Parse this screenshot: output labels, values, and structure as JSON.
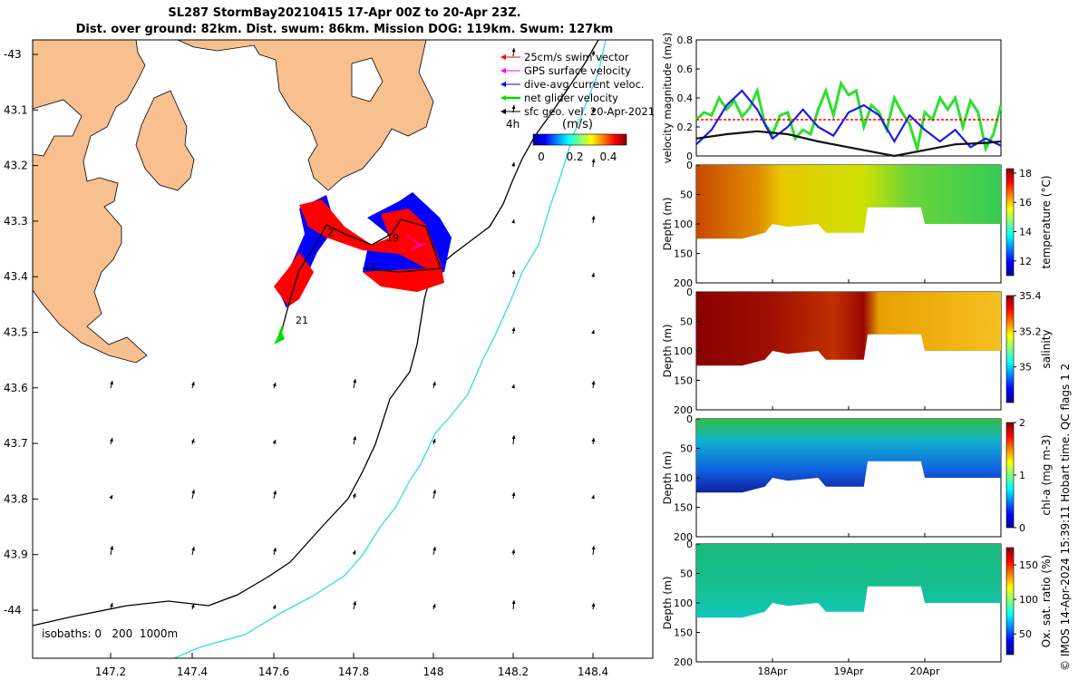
{
  "title_line1": "SL287 StormBay20210415 17-Apr 00Z to 20-Apr 23Z.",
  "title_line2": "Dist. over ground: 82km. Dist. swum: 86km. Mission DOG: 119km. Swum: 127km",
  "watermark": "© IMOS 14-Apr-2024 15:39:11 Hobart time. QC flags 1  2",
  "colors": {
    "land": "#f7c08e",
    "swim": "#ff0000",
    "gps": "#ff00ff",
    "dive": "#0000ff",
    "net": "#00dd00",
    "sfc": "#000000",
    "iso200": "#000000",
    "iso1000": "#33dddd",
    "speed_line": "#2de02d",
    "current_line": "#1a1aee",
    "geo_line": "#111111",
    "swim_ref_line": "#ff0000"
  },
  "map": {
    "legend": [
      {
        "label": "25cm/s swim vector",
        "color": "#ff0000",
        "icon": "arrow-left-icon"
      },
      {
        "label": "GPS surface velocity",
        "color": "#ff00ff",
        "icon": "arrow-left-icon"
      },
      {
        "label": "dive-avg current veloc.",
        "color": "#0000ff",
        "icon": "arrow-left-icon"
      },
      {
        "label": "net glider velocity",
        "color": "#00dd00",
        "icon": "arrow-left-icon"
      },
      {
        "label": "sfc geo. vel. 20-Apr-2021",
        "color": "#000000",
        "icon": "arrow-left-icon"
      }
    ],
    "time_step_label": "4h",
    "colorbar_unit": "(m/s)",
    "colorbar_ticks": [
      "0",
      "0.2",
      "0.4"
    ],
    "day_labels": [
      "2",
      "19",
      "1",
      "21"
    ],
    "isobaths_label": "isobaths: 0   200  1000m",
    "xticks": [
      "147.2",
      "147.4",
      "147.6",
      "147.8",
      "148",
      "148.2",
      "148.4"
    ],
    "yticks": [
      "-43",
      "43.1",
      "43.2",
      "43.3",
      "43.4",
      "43.5",
      "43.6",
      "43.7",
      "43.8",
      "43.9",
      "-44"
    ]
  },
  "chart_data": [
    {
      "type": "line",
      "title": "",
      "ylabel": "velocity magnitude (m/s)",
      "ylim": [
        0,
        0.8
      ],
      "yticks": [
        "0",
        "0.2",
        "0.4",
        "0.6",
        "0.8"
      ],
      "xlim": [
        17.0,
        21.0
      ],
      "series": [
        {
          "name": "net glider velocity",
          "x": [
            17.0,
            17.1,
            17.2,
            17.3,
            17.4,
            17.5,
            17.6,
            17.7,
            17.8,
            17.9,
            18.0,
            18.1,
            18.2,
            18.3,
            18.4,
            18.5,
            18.6,
            18.7,
            18.8,
            18.9,
            19.0,
            19.1,
            19.2,
            19.3,
            19.4,
            19.5,
            19.6,
            19.7,
            19.8,
            19.9,
            20.0,
            20.1,
            20.2,
            20.3,
            20.4,
            20.5,
            20.6,
            20.7,
            20.8,
            20.9,
            21.0
          ],
          "values": [
            0.25,
            0.3,
            0.28,
            0.4,
            0.32,
            0.38,
            0.27,
            0.33,
            0.45,
            0.22,
            0.15,
            0.28,
            0.3,
            0.12,
            0.18,
            0.15,
            0.32,
            0.45,
            0.28,
            0.5,
            0.42,
            0.45,
            0.2,
            0.35,
            0.3,
            0.18,
            0.4,
            0.3,
            0.22,
            0.05,
            0.3,
            0.25,
            0.4,
            0.32,
            0.4,
            0.2,
            0.38,
            0.3,
            0.05,
            0.15,
            0.35
          ]
        },
        {
          "name": "dive-avg current veloc.",
          "x": [
            17.0,
            17.2,
            17.4,
            17.6,
            17.8,
            18.0,
            18.2,
            18.4,
            18.6,
            18.8,
            19.0,
            19.2,
            19.4,
            19.6,
            19.8,
            20.0,
            20.2,
            20.4,
            20.6,
            20.8,
            21.0
          ],
          "values": [
            0.08,
            0.18,
            0.35,
            0.45,
            0.32,
            0.12,
            0.2,
            0.32,
            0.2,
            0.14,
            0.3,
            0.35,
            0.28,
            0.1,
            0.28,
            0.18,
            0.1,
            0.18,
            0.06,
            0.12,
            0.07
          ]
        },
        {
          "name": "sfc geo. vel.",
          "x": [
            17.0,
            17.4,
            17.8,
            18.2,
            18.6,
            19.0,
            19.4,
            19.6,
            20.0,
            20.4,
            20.8,
            21.0
          ],
          "values": [
            0.12,
            0.15,
            0.17,
            0.15,
            0.1,
            0.06,
            0.02,
            0.0,
            0.04,
            0.08,
            0.09,
            0.1
          ]
        },
        {
          "name": "25cm/s swim",
          "x": [
            17.0,
            21.0
          ],
          "values": [
            0.25,
            0.25
          ]
        }
      ]
    },
    {
      "type": "heatmap",
      "ylabel": "Depth (m)",
      "ylim": [
        200,
        0
      ],
      "yticks": [
        "0",
        "50",
        "100",
        "150",
        "200"
      ],
      "colorbar_label": "temperature (°C)",
      "colorbar_ticks": [
        "12",
        "14",
        "16",
        "18"
      ],
      "clim": [
        11,
        18.3
      ]
    },
    {
      "type": "heatmap",
      "ylabel": "Depth (m)",
      "ylim": [
        200,
        0
      ],
      "yticks": [
        "0",
        "50",
        "100",
        "150",
        "200"
      ],
      "colorbar_label": "salinity",
      "colorbar_ticks": [
        "35",
        "35.2",
        "35.4"
      ],
      "clim": [
        34.8,
        35.4
      ]
    },
    {
      "type": "heatmap",
      "ylabel": "Depth (m)",
      "ylim": [
        200,
        0
      ],
      "yticks": [
        "0",
        "50",
        "100",
        "150",
        "200"
      ],
      "colorbar_label": "chl-a (mg m-3)",
      "colorbar_ticks": [
        "0",
        "1",
        "2"
      ],
      "clim": [
        0,
        2
      ]
    },
    {
      "type": "heatmap",
      "ylabel": "Depth (m)",
      "ylim": [
        200,
        0
      ],
      "yticks": [
        "0",
        "50",
        "100",
        "150",
        "200"
      ],
      "xticks": [
        "18Apr",
        "19Apr",
        "20Apr"
      ],
      "colorbar_label": "Ox. sat. ratio (%)",
      "colorbar_ticks": [
        "50",
        "100",
        "150"
      ],
      "clim": [
        20,
        175
      ]
    }
  ]
}
